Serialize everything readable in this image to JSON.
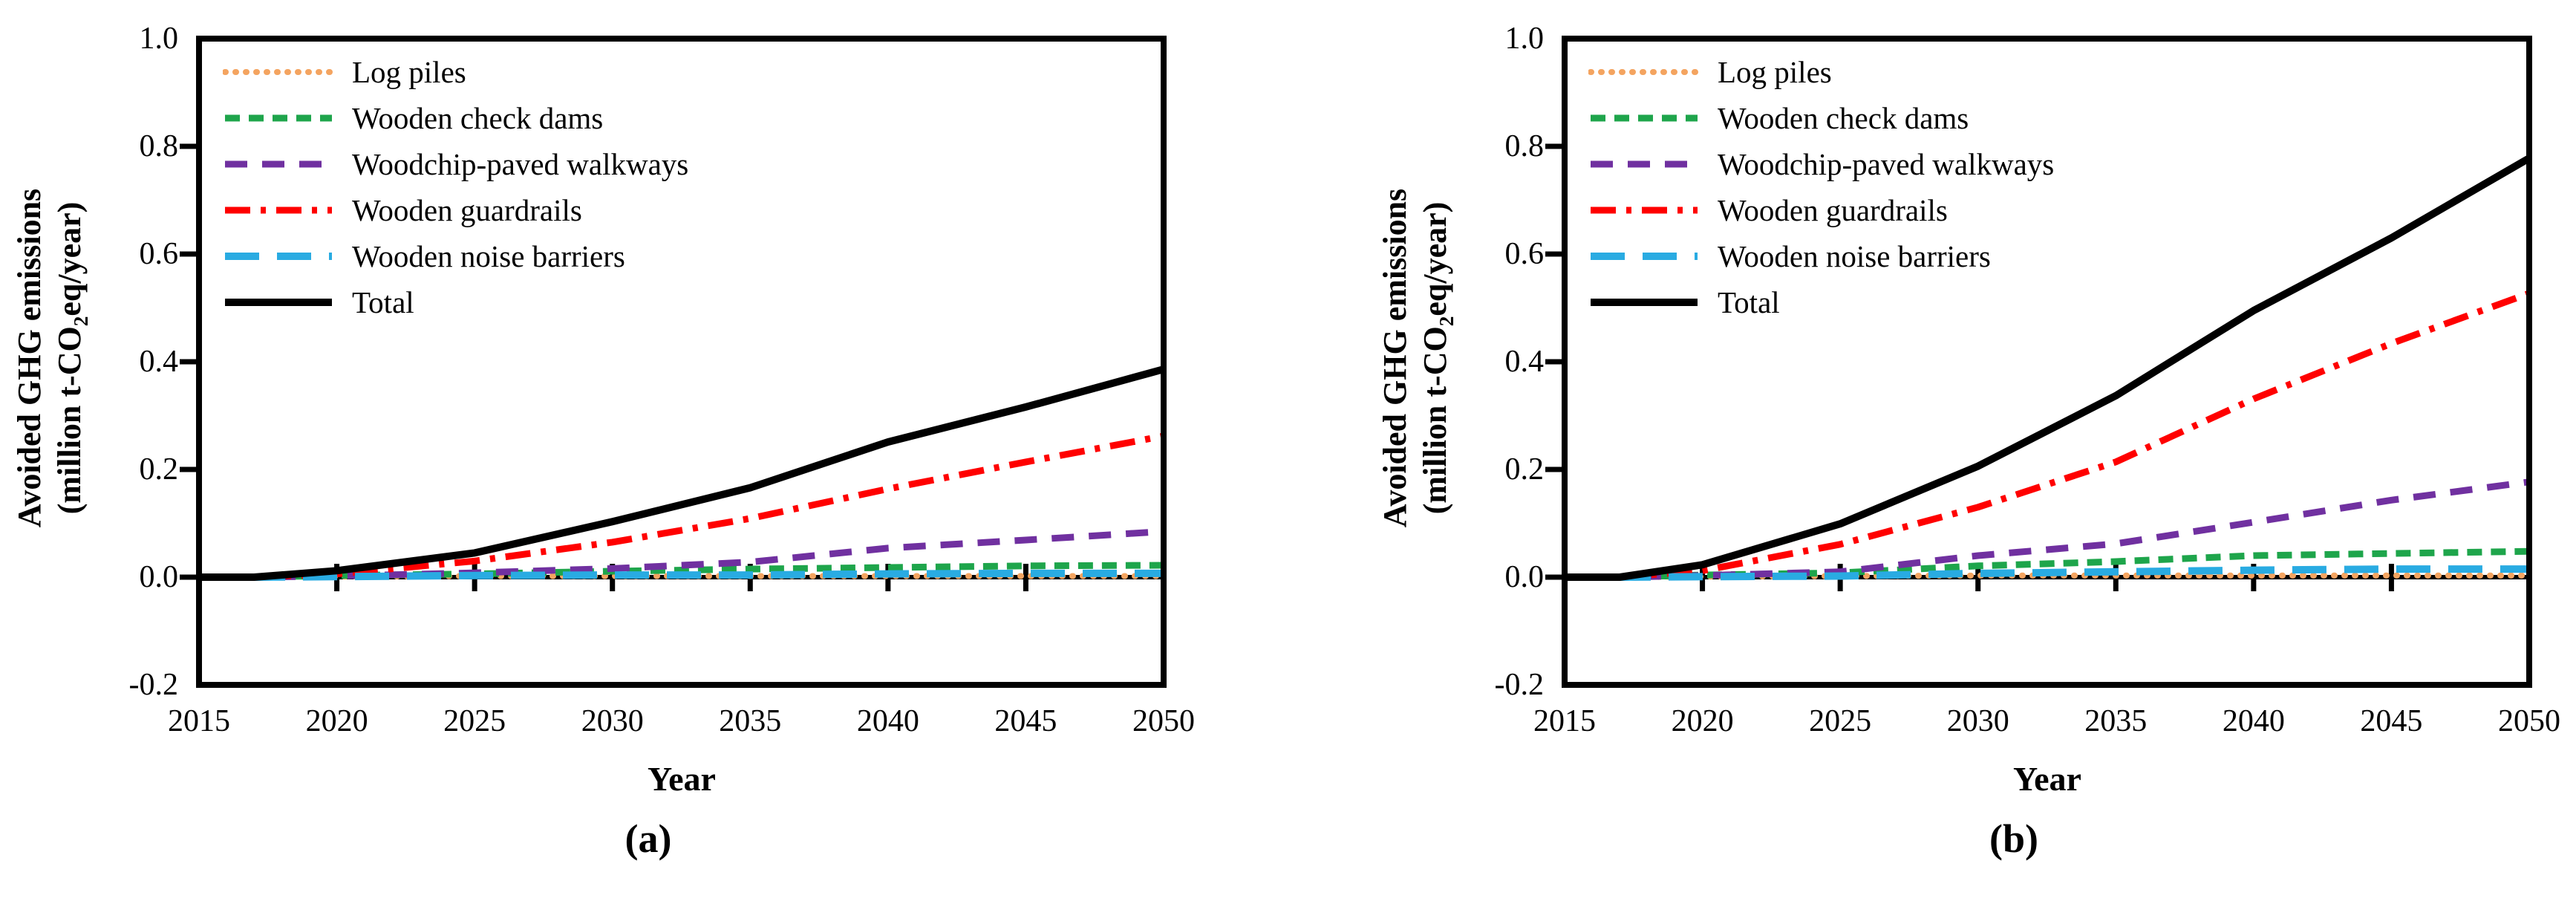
{
  "figure": {
    "ylabel_line1": "Avoided GHG emissions",
    "ylabel_line2_pre": "(million t-CO",
    "ylabel_line2_sub": "2",
    "ylabel_line2_post": "eq/year)",
    "xlabel": "Year",
    "panel_captions": [
      "(a)",
      "(b)"
    ],
    "background_color": "#ffffff",
    "axis_color": "#000000"
  },
  "chart_data": [
    {
      "type": "line",
      "panel": "a",
      "title": "",
      "xlabel": "Year",
      "ylabel": "Avoided GHG emissions (million t-CO2eq/year)",
      "xlim": [
        2015,
        2050
      ],
      "ylim": [
        -0.2,
        1.0
      ],
      "grid": false,
      "legend_position": "upper-left-inside",
      "xticks": [
        2015,
        2020,
        2025,
        2030,
        2035,
        2040,
        2045,
        2050
      ],
      "xtick_labels": [
        "2015",
        "2020",
        "2025",
        "2030",
        "2035",
        "2040",
        "2045",
        "2050"
      ],
      "yticks": [
        1.0,
        0.8,
        0.6,
        0.4,
        0.2,
        0.0,
        -0.2
      ],
      "ytick_labels": [
        "1.0",
        "0.8",
        "0.6",
        "0.4",
        "0.2",
        "0.0",
        "-0.2"
      ],
      "x": [
        2015,
        2016,
        2017,
        2020,
        2025,
        2030,
        2035,
        2040,
        2045,
        2050
      ],
      "series": [
        {
          "name": "Log piles",
          "color": "#F4A460",
          "style": "dotted",
          "values": [
            0,
            0,
            0,
            0.001,
            0.002,
            0.002,
            0.002,
            0.002,
            0.002,
            0.002
          ]
        },
        {
          "name": "Wooden check dams",
          "color": "#1EA54B",
          "style": "short-dash",
          "values": [
            0,
            0,
            0,
            0.003,
            0.006,
            0.011,
            0.015,
            0.018,
            0.021,
            0.022
          ]
        },
        {
          "name": "Woodchip-paved walkways",
          "color": "#7030A0",
          "style": "dash",
          "values": [
            0,
            0,
            0,
            0.002,
            0.008,
            0.016,
            0.028,
            0.054,
            0.069,
            0.085
          ]
        },
        {
          "name": "Wooden guardrails",
          "color": "#FF0000",
          "style": "dash-dot",
          "values": [
            0,
            0,
            0,
            0.006,
            0.03,
            0.065,
            0.109,
            0.164,
            0.214,
            0.262
          ]
        },
        {
          "name": "Wooden noise barriers",
          "color": "#29ABE2",
          "style": "long-dash",
          "values": [
            0,
            0,
            0,
            0.001,
            0.003,
            0.004,
            0.004,
            0.006,
            0.007,
            0.007
          ]
        },
        {
          "name": "Total",
          "color": "#000000",
          "style": "solid",
          "values": [
            0,
            0,
            0,
            0.012,
            0.045,
            0.103,
            0.166,
            0.251,
            0.316,
            0.386
          ]
        }
      ]
    },
    {
      "type": "line",
      "panel": "b",
      "title": "",
      "xlabel": "Year",
      "ylabel": "Avoided GHG emissions (million t-CO2eq/year)",
      "xlim": [
        2015,
        2050
      ],
      "ylim": [
        -0.2,
        1.0
      ],
      "grid": false,
      "legend_position": "upper-left-inside",
      "xticks": [
        2015,
        2020,
        2025,
        2030,
        2035,
        2040,
        2045,
        2050
      ],
      "xtick_labels": [
        "2015",
        "2020",
        "2025",
        "2030",
        "2035",
        "2040",
        "2045",
        "2050"
      ],
      "yticks": [
        1.0,
        0.8,
        0.6,
        0.4,
        0.2,
        0.0,
        -0.2
      ],
      "ytick_labels": [
        "1.0",
        "0.8",
        "0.6",
        "0.4",
        "0.2",
        "0.0",
        "-0.2"
      ],
      "x": [
        2015,
        2016,
        2017,
        2020,
        2025,
        2030,
        2035,
        2040,
        2045,
        2050
      ],
      "series": [
        {
          "name": "Log piles",
          "color": "#F4A460",
          "style": "dotted",
          "values": [
            0,
            0,
            0,
            0.001,
            0.002,
            0.003,
            0.003,
            0.003,
            0.003,
            0.003
          ]
        },
        {
          "name": "Wooden check dams",
          "color": "#1EA54B",
          "style": "short-dash",
          "values": [
            0,
            0,
            0,
            0.004,
            0.008,
            0.021,
            0.029,
            0.04,
            0.044,
            0.048
          ]
        },
        {
          "name": "Woodchip-paved walkways",
          "color": "#7030A0",
          "style": "dash",
          "values": [
            0,
            0,
            0,
            0.003,
            0.01,
            0.04,
            0.062,
            0.102,
            0.143,
            0.177
          ]
        },
        {
          "name": "Wooden guardrails",
          "color": "#FF0000",
          "style": "dash-dot",
          "values": [
            0,
            0,
            0,
            0.012,
            0.061,
            0.13,
            0.214,
            0.331,
            0.434,
            0.527
          ]
        },
        {
          "name": "Wooden noise barriers",
          "color": "#29ABE2",
          "style": "long-dash",
          "values": [
            0,
            0,
            0,
            0.001,
            0.002,
            0.007,
            0.01,
            0.013,
            0.015,
            0.015
          ]
        },
        {
          "name": "Total",
          "color": "#000000",
          "style": "solid",
          "values": [
            0,
            0,
            0,
            0.023,
            0.099,
            0.206,
            0.337,
            0.495,
            0.63,
            0.778
          ]
        }
      ]
    }
  ]
}
